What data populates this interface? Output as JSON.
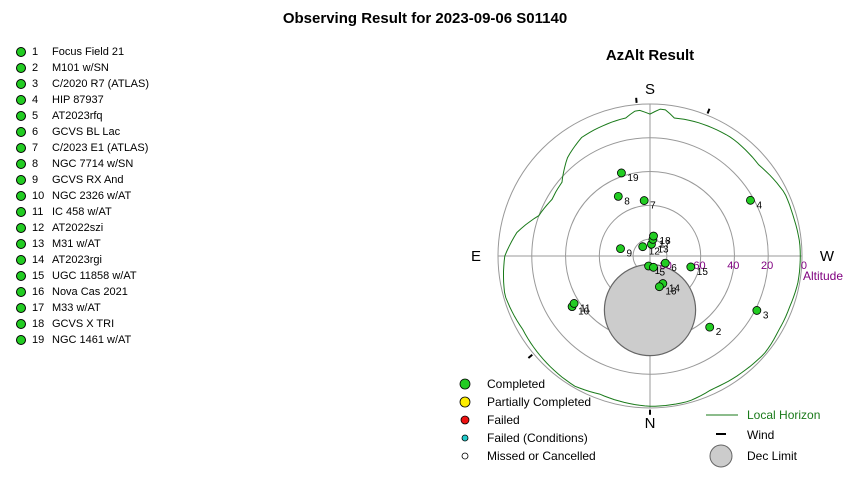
{
  "page": {
    "title": "Observing Result for 2023-09-06  S01140"
  },
  "targets": [
    {
      "num": "1",
      "name": "Focus Field 21"
    },
    {
      "num": "2",
      "name": "M101 w/SN"
    },
    {
      "num": "3",
      "name": "C/2020 R7 (ATLAS)"
    },
    {
      "num": "4",
      "name": "HIP 87937"
    },
    {
      "num": "5",
      "name": "AT2023rfq"
    },
    {
      "num": "6",
      "name": "GCVS BL Lac"
    },
    {
      "num": "7",
      "name": "C/2023 E1 (ATLAS)"
    },
    {
      "num": "8",
      "name": "NGC 7714 w/SN"
    },
    {
      "num": "9",
      "name": "GCVS RX And"
    },
    {
      "num": "10",
      "name": "NGC 2326 w/AT"
    },
    {
      "num": "11",
      "name": "IC 458 w/AT"
    },
    {
      "num": "12",
      "name": "AT2022szi"
    },
    {
      "num": "13",
      "name": "M31 w/AT"
    },
    {
      "num": "14",
      "name": "AT2023rgi"
    },
    {
      "num": "15",
      "name": "UGC 11858 w/AT"
    },
    {
      "num": "16",
      "name": "Nova Cas 2021"
    },
    {
      "num": "17",
      "name": "M33 w/AT"
    },
    {
      "num": "18",
      "name": "GCVS X TRI"
    },
    {
      "num": "19",
      "name": "NGC 1461 w/AT"
    }
  ],
  "chart_data": {
    "type": "scatter",
    "title": "AzAlt Result",
    "projection": "polar alt-az, south at top, east left",
    "directions": {
      "s": "S",
      "n": "N",
      "e": "E",
      "w": "W"
    },
    "altitude_label": "Altitude",
    "altitude_ticks": [
      "80",
      "60",
      "40",
      "20",
      "0"
    ],
    "altitude_rings": [
      80,
      60,
      40,
      20,
      0
    ],
    "colors": {
      "completed": "#22cc22",
      "partial": "#ffee00",
      "failed": "#ee1111",
      "failed_conditions": "#22cccc",
      "missed": "#ffffff",
      "horizon": "#1a7a1a",
      "dec_limit": "#cccccc",
      "altitude_text": "#800080"
    },
    "points": [
      {
        "label": "1",
        "status": "completed",
        "az": 8,
        "alt": 84
      },
      {
        "label": "2",
        "status": "completed",
        "az": 320,
        "alt": 35
      },
      {
        "label": "3",
        "status": "completed",
        "az": 297,
        "alt": 19
      },
      {
        "label": "4",
        "status": "completed",
        "az": 241,
        "alt": 22
      },
      {
        "label": "5",
        "status": "completed",
        "az": 343,
        "alt": 83
      },
      {
        "label": "6",
        "status": "completed",
        "az": 295,
        "alt": 80
      },
      {
        "label": "7",
        "status": "completed",
        "az": 174,
        "alt": 57
      },
      {
        "label": "8",
        "status": "completed",
        "az": 152,
        "alt": 50
      },
      {
        "label": "9",
        "status": "completed",
        "az": 104,
        "alt": 72
      },
      {
        "label": "10",
        "status": "completed",
        "az": 57,
        "alt": 35
      },
      {
        "label": "11",
        "status": "completed",
        "az": 58,
        "alt": 37
      },
      {
        "label": "12",
        "status": "completed",
        "az": 142,
        "alt": 83
      },
      {
        "label": "13",
        "status": "completed",
        "az": 187,
        "alt": 83
      },
      {
        "label": "14",
        "status": "completed",
        "az": 335,
        "alt": 72
      },
      {
        "label": "15",
        "status": "completed",
        "az": 285,
        "alt": 65
      },
      {
        "label": "16",
        "status": "completed",
        "az": 343,
        "alt": 71
      },
      {
        "label": "17",
        "status": "completed",
        "az": 190,
        "alt": 80
      },
      {
        "label": "18",
        "status": "completed",
        "az": 190,
        "alt": 78
      },
      {
        "label": "19",
        "status": "completed",
        "az": 161,
        "alt": 38
      }
    ],
    "horizon_alt_deg": [
      [
        0,
        1
      ],
      [
        20,
        3
      ],
      [
        30,
        1
      ],
      [
        45,
        2
      ],
      [
        60,
        3
      ],
      [
        75,
        1
      ],
      [
        90,
        4
      ],
      [
        100,
        10
      ],
      [
        110,
        20
      ],
      [
        120,
        23
      ],
      [
        130,
        22
      ],
      [
        140,
        14
      ],
      [
        150,
        9
      ],
      [
        160,
        8
      ],
      [
        170,
        7
      ],
      [
        175,
        3
      ],
      [
        180,
        6
      ],
      [
        185,
        2
      ],
      [
        190,
        7
      ],
      [
        200,
        6
      ],
      [
        215,
        5
      ],
      [
        230,
        6
      ],
      [
        245,
        2
      ],
      [
        255,
        2
      ],
      [
        265,
        1
      ],
      [
        280,
        1
      ],
      [
        290,
        2
      ],
      [
        300,
        2
      ],
      [
        310,
        1
      ],
      [
        320,
        2
      ],
      [
        335,
        3
      ],
      [
        345,
        1
      ],
      [
        360,
        1
      ]
    ],
    "wind_az_deg": [
      175,
      202,
      50,
      0
    ],
    "dec_limit": {
      "az": 0,
      "alt": 58,
      "radius_deg": 27
    },
    "legend": {
      "completed": "Completed",
      "partial": "Partially Completed",
      "failed": "Failed",
      "failed_conditions": "Failed (Conditions)",
      "missed": "Missed or Cancelled",
      "horizon": "Local Horizon",
      "wind": "Wind",
      "dec_limit": "Dec Limit"
    }
  }
}
